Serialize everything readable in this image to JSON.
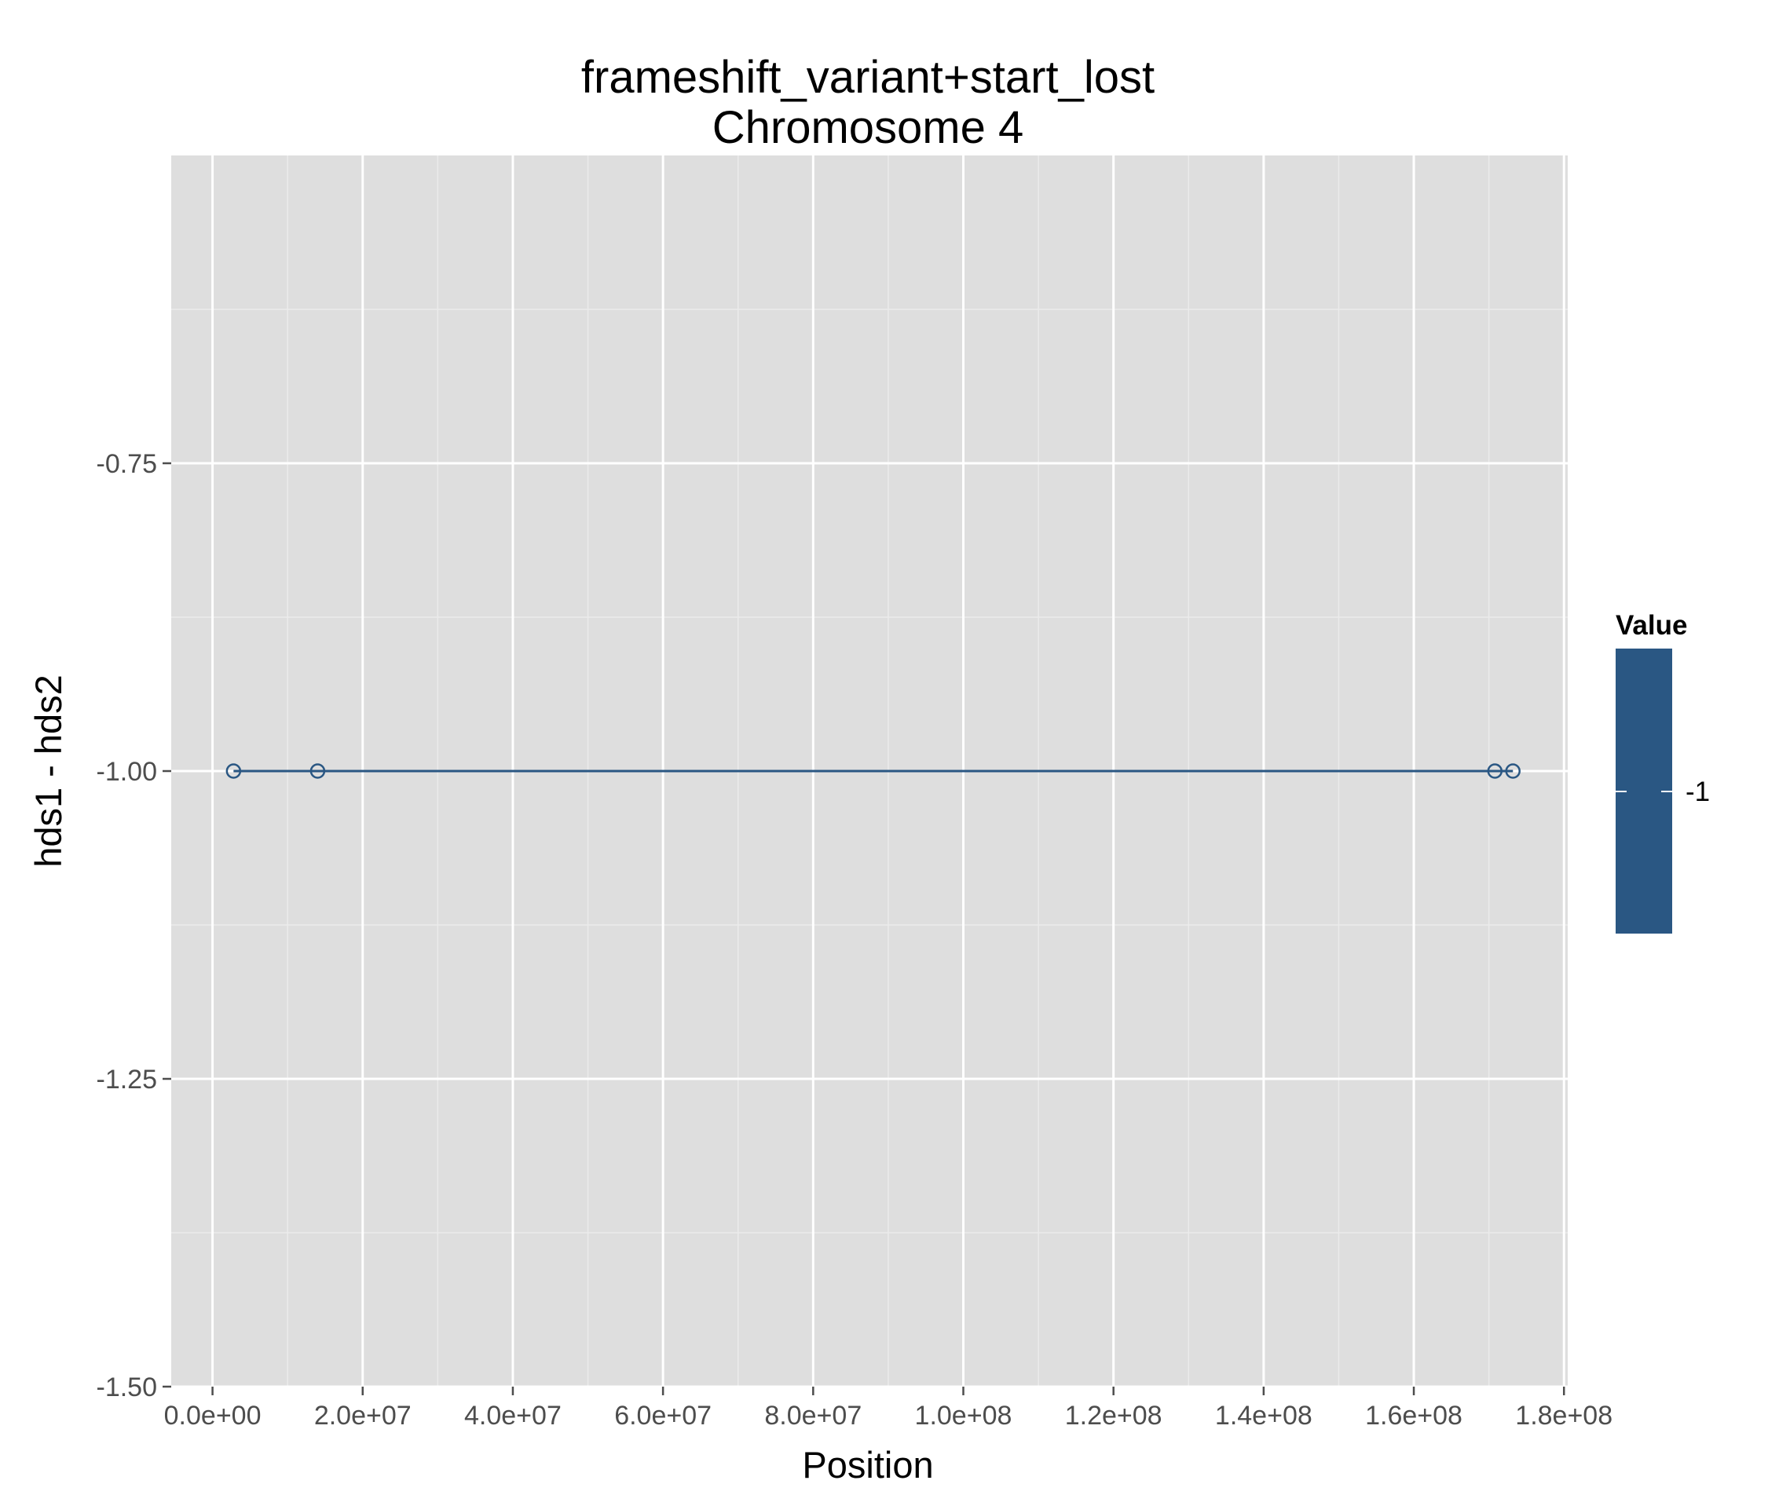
{
  "chart_data": {
    "type": "line",
    "title_line1": "frameshift_variant+start_lost",
    "title_line2": "Chromosome 4",
    "xlabel": "Position",
    "ylabel": "hds1 - hds2",
    "xlim": [
      -5500000,
      180500000
    ],
    "ylim": [
      -1.5,
      -0.5
    ],
    "x_ticks": [
      {
        "value": 0,
        "label": "0.0e+00"
      },
      {
        "value": 20000000,
        "label": "2.0e+07"
      },
      {
        "value": 40000000,
        "label": "4.0e+07"
      },
      {
        "value": 60000000,
        "label": "6.0e+07"
      },
      {
        "value": 80000000,
        "label": "8.0e+07"
      },
      {
        "value": 100000000,
        "label": "1.0e+08"
      },
      {
        "value": 120000000,
        "label": "1.2e+08"
      },
      {
        "value": 140000000,
        "label": "1.4e+08"
      },
      {
        "value": 160000000,
        "label": "1.6e+08"
      },
      {
        "value": 180000000,
        "label": "1.8e+08"
      }
    ],
    "y_ticks": [
      {
        "value": -0.75,
        "label": "-0.75"
      },
      {
        "value": -1.0,
        "label": "-1.00"
      },
      {
        "value": -1.25,
        "label": "-1.25"
      },
      {
        "value": -1.5,
        "label": "-1.50"
      }
    ],
    "grid": true,
    "series": [
      {
        "x": [
          2800000,
          14000000,
          170800000,
          173200000
        ],
        "y": [
          -1,
          -1,
          -1,
          -1
        ]
      }
    ],
    "legend": {
      "title": "Value",
      "label": "-1",
      "placement": "right",
      "color": "#2a5783"
    },
    "colors": {
      "panel": "#dedede",
      "grid_major": "#ffffff",
      "grid_minor": "#ebebeb",
      "series": "#2a5783"
    }
  }
}
